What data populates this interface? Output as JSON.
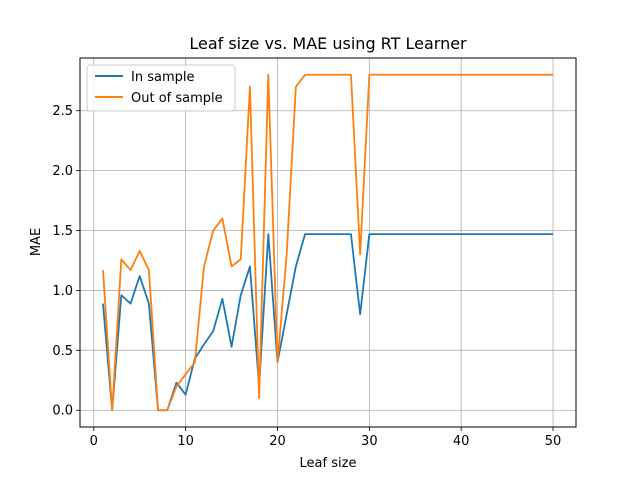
{
  "chart_data": {
    "type": "line",
    "title": "Leaf size vs. MAE using RT Learner",
    "xlabel": "Leaf size",
    "ylabel": "MAE",
    "xlim": [
      -1.5,
      52.5
    ],
    "ylim": [
      -0.14,
      2.94
    ],
    "xticks": [
      0,
      10,
      20,
      30,
      40,
      50
    ],
    "yticks": [
      0.0,
      0.5,
      1.0,
      1.5,
      2.0,
      2.5
    ],
    "xtick_labels": [
      "0",
      "10",
      "20",
      "30",
      "40",
      "50"
    ],
    "ytick_labels": [
      "0.0",
      "0.5",
      "1.0",
      "1.5",
      "2.0",
      "2.5"
    ],
    "grid": true,
    "legend_position": "top-left",
    "x": [
      1,
      2,
      3,
      4,
      5,
      6,
      7,
      8,
      9,
      10,
      11,
      12,
      13,
      14,
      15,
      16,
      17,
      18,
      19,
      20,
      21,
      22,
      23,
      24,
      25,
      26,
      27,
      28,
      29,
      30,
      31,
      32,
      33,
      34,
      35,
      36,
      37,
      38,
      39,
      40,
      41,
      42,
      43,
      44,
      45,
      46,
      47,
      48,
      49,
      50
    ],
    "series": [
      {
        "name": "In sample",
        "color": "#1f77b4",
        "values": [
          0.89,
          0.0,
          0.96,
          0.89,
          1.12,
          0.89,
          0.0,
          0.0,
          0.23,
          0.13,
          0.43,
          0.55,
          0.66,
          0.93,
          0.53,
          0.96,
          1.2,
          0.2,
          1.47,
          0.4,
          0.8,
          1.2,
          1.47,
          1.47,
          1.47,
          1.47,
          1.47,
          1.47,
          0.8,
          1.47,
          1.47,
          1.47,
          1.47,
          1.47,
          1.47,
          1.47,
          1.47,
          1.47,
          1.47,
          1.47,
          1.47,
          1.47,
          1.47,
          1.47,
          1.47,
          1.47,
          1.47,
          1.47,
          1.47,
          1.47
        ]
      },
      {
        "name": "Out of sample",
        "color": "#ff7f0e",
        "values": [
          1.17,
          0.0,
          1.26,
          1.17,
          1.33,
          1.17,
          0.0,
          0.0,
          0.2,
          0.3,
          0.4,
          1.2,
          1.5,
          1.6,
          1.2,
          1.26,
          2.7,
          0.1,
          2.8,
          0.4,
          1.3,
          2.7,
          2.8,
          2.8,
          2.8,
          2.8,
          2.8,
          2.8,
          1.3,
          2.8,
          2.8,
          2.8,
          2.8,
          2.8,
          2.8,
          2.8,
          2.8,
          2.8,
          2.8,
          2.8,
          2.8,
          2.8,
          2.8,
          2.8,
          2.8,
          2.8,
          2.8,
          2.8,
          2.8,
          2.8
        ]
      }
    ]
  }
}
